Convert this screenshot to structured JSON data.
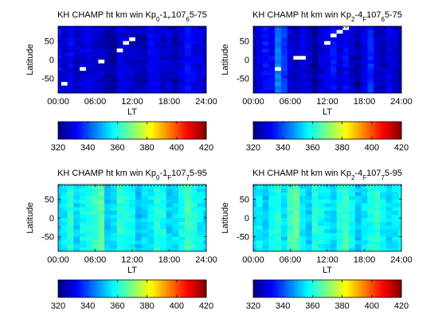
{
  "figure": {
    "background": "#ffffff",
    "colormap": "jet"
  },
  "chart_data": [
    {
      "type": "heatmap",
      "title_main": "KH CHAMP ht km win Kp",
      "title_parts": [
        {
          "text": "KH CHAMP ht km win Kp",
          "shift": "base"
        },
        {
          "text": "0",
          "shift": "sub"
        },
        {
          "text": "-1",
          "shift": "base"
        },
        {
          "text": "F",
          "shift": "sub"
        },
        {
          "text": "107",
          "shift": "base"
        },
        {
          "text": "6",
          "shift": "sub"
        },
        {
          "text": "5-75",
          "shift": "base"
        }
      ],
      "xlabel": "LT",
      "ylabel": "Latitude",
      "xticks": [
        "00:00",
        "06:00",
        "12:00",
        "18:00",
        "24:00"
      ],
      "yticks": [
        "50",
        "0",
        "-50"
      ],
      "colorbar_ticks": [
        "320",
        "340",
        "360",
        "380",
        "400",
        "420"
      ],
      "clim": [
        320,
        420
      ],
      "xlim": [
        0,
        24
      ],
      "ylim": [
        -90,
        90
      ],
      "base_level": 326,
      "column_levels": [
        332,
        328,
        331,
        326,
        329,
        330,
        327,
        328,
        324,
        323,
        330,
        328,
        327,
        326,
        325,
        331,
        330,
        327,
        328,
        324,
        329,
        333,
        331,
        330,
        328
      ],
      "blanks": [
        [
          1,
          2
        ],
        [
          4,
          6
        ],
        [
          11,
          13
        ],
        [
          18,
          19
        ],
        [
          7,
          8
        ],
        [
          10,
          11
        ],
        [
          12,
          14
        ]
      ]
    },
    {
      "type": "heatmap",
      "title_main": "KH CHAMP ht km win Kp",
      "title_parts": [
        {
          "text": "KH CHAMP ht km win Kp",
          "shift": "base"
        },
        {
          "text": "2",
          "shift": "sub"
        },
        {
          "text": "-4",
          "shift": "base"
        },
        {
          "text": "F",
          "shift": "sub"
        },
        {
          "text": "107",
          "shift": "base"
        },
        {
          "text": "6",
          "shift": "sub"
        },
        {
          "text": "5-75",
          "shift": "base"
        }
      ],
      "xlabel": "LT",
      "ylabel": "Latitude",
      "xticks": [
        "00:00",
        "06:00",
        "12:00",
        "18:00",
        "24:00"
      ],
      "yticks": [
        "50",
        "0",
        "-50"
      ],
      "colorbar_ticks": [
        "320",
        "340",
        "360",
        "380",
        "400",
        "420"
      ],
      "clim": [
        320,
        420
      ],
      "xlim": [
        0,
        24
      ],
      "ylim": [
        -90,
        90
      ],
      "base_level": 324,
      "column_levels": [
        326,
        330,
        335,
        332,
        345,
        337,
        329,
        325,
        330,
        327,
        322,
        328,
        330,
        334,
        328,
        332,
        327,
        324,
        331,
        336,
        328,
        326,
        330,
        327,
        324
      ],
      "blanks": [
        [
          4,
          6
        ],
        [
          7,
          9
        ],
        [
          13,
          15
        ],
        [
          14,
          16
        ],
        [
          15,
          17
        ],
        [
          12,
          13
        ],
        [
          8,
          9
        ]
      ]
    },
    {
      "type": "heatmap",
      "title_main": "KH CHAMP ht km win Kp",
      "title_parts": [
        {
          "text": "KH CHAMP ht km win Kp",
          "shift": "base"
        },
        {
          "text": "0",
          "shift": "sub"
        },
        {
          "text": "-1",
          "shift": "base"
        },
        {
          "text": "F",
          "shift": "sub"
        },
        {
          "text": "107",
          "shift": "base"
        },
        {
          "text": "7",
          "shift": "sub"
        },
        {
          "text": "5-95",
          "shift": "base"
        }
      ],
      "xlabel": "LT",
      "ylabel": "Latitude",
      "xticks": [
        "00:00",
        "06:00",
        "12:00",
        "18:00",
        "24:00"
      ],
      "yticks": [
        "50",
        "0",
        "-50"
      ],
      "colorbar_ticks": [
        "320",
        "340",
        "360",
        "380",
        "400",
        "420"
      ],
      "clim": [
        320,
        420
      ],
      "xlim": [
        0,
        24
      ],
      "ylim": [
        -90,
        90
      ],
      "base_level": 357,
      "column_levels": [
        352,
        356,
        361,
        354,
        358,
        360,
        363,
        366,
        352,
        355,
        362,
        360,
        358,
        351,
        354,
        356,
        361,
        359,
        353,
        355,
        358,
        364,
        360,
        356,
        354
      ],
      "blanks": []
    },
    {
      "type": "heatmap",
      "title_main": "KH CHAMP ht km win Kp",
      "title_parts": [
        {
          "text": "KH CHAMP ht km win Kp",
          "shift": "base"
        },
        {
          "text": "2",
          "shift": "sub"
        },
        {
          "text": "-4",
          "shift": "base"
        },
        {
          "text": "F",
          "shift": "sub"
        },
        {
          "text": "107",
          "shift": "base"
        },
        {
          "text": "7",
          "shift": "sub"
        },
        {
          "text": "5-95",
          "shift": "base"
        }
      ],
      "xlabel": "LT",
      "ylabel": "Latitude",
      "xticks": [
        "00:00",
        "06:00",
        "12:00",
        "18:00",
        "24:00"
      ],
      "yticks": [
        "50",
        "0",
        "-50"
      ],
      "colorbar_ticks": [
        "320",
        "340",
        "360",
        "380",
        "400",
        "420"
      ],
      "clim": [
        320,
        420
      ],
      "xlim": [
        0,
        24
      ],
      "ylim": [
        -90,
        90
      ],
      "base_level": 356,
      "column_levels": [
        354,
        357,
        352,
        358,
        361,
        354,
        363,
        367,
        355,
        352,
        361,
        358,
        356,
        354,
        360,
        363,
        357,
        352,
        355,
        359,
        362,
        357,
        354,
        356,
        358
      ],
      "blanks": []
    }
  ]
}
